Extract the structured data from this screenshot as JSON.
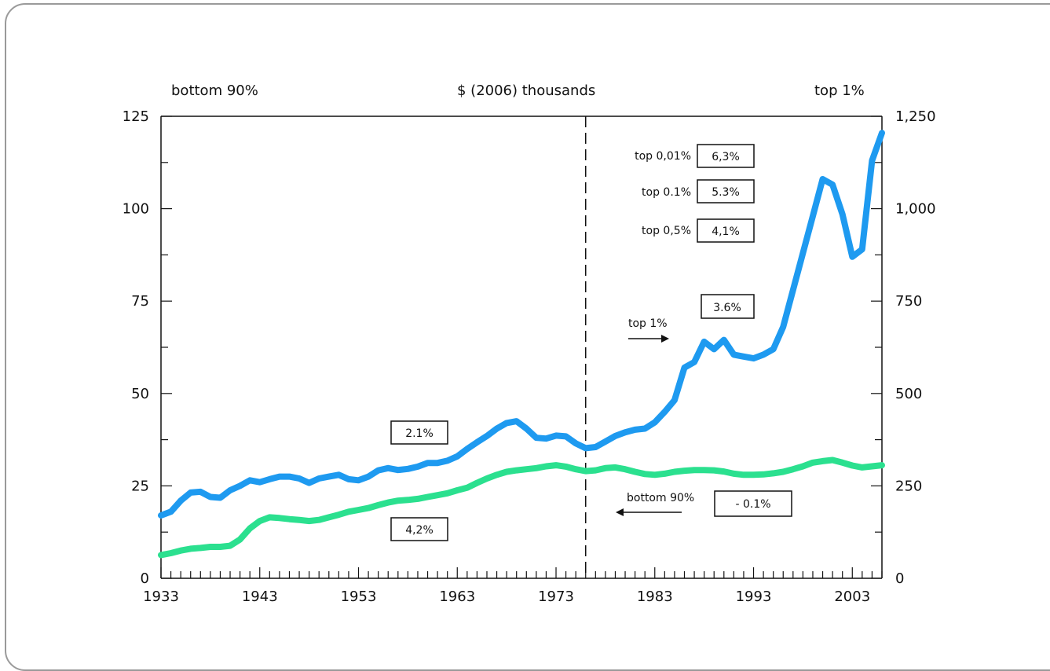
{
  "chart_data": {
    "type": "line",
    "header": {
      "left": "bottom 90%",
      "center": "$ (2006) thousands",
      "right": "top 1%"
    },
    "x": [
      1933,
      1934,
      1935,
      1936,
      1937,
      1938,
      1939,
      1940,
      1941,
      1942,
      1943,
      1944,
      1945,
      1946,
      1947,
      1948,
      1949,
      1950,
      1951,
      1952,
      1953,
      1954,
      1955,
      1956,
      1957,
      1958,
      1959,
      1960,
      1961,
      1962,
      1963,
      1964,
      1965,
      1966,
      1967,
      1968,
      1969,
      1970,
      1971,
      1972,
      1973,
      1974,
      1975,
      1976,
      1977,
      1978,
      1979,
      1980,
      1981,
      1982,
      1983,
      1984,
      1985,
      1986,
      1987,
      1988,
      1989,
      1990,
      1991,
      1992,
      1993,
      1994,
      1995,
      1996,
      1997,
      1998,
      1999,
      2000,
      2001,
      2002,
      2003,
      2004,
      2005,
      2006
    ],
    "xlim": [
      1933,
      2006
    ],
    "x_ticks": [
      "1933",
      "1943",
      "1953",
      "1963",
      "1973",
      "1983",
      "1993",
      "2003"
    ],
    "y_left": {
      "label": "bottom 90%",
      "lim": [
        0,
        125
      ],
      "ticks": [
        "0",
        "25",
        "50",
        "75",
        "100",
        "125"
      ]
    },
    "y_right": {
      "label": "top 1%",
      "lim": [
        0,
        1250
      ],
      "ticks": [
        "0",
        "250",
        "500",
        "750",
        "1,000",
        "1,250"
      ]
    },
    "series": [
      {
        "name": "top 1%",
        "axis": "right",
        "color": "#1e9af0",
        "values": [
          170,
          180,
          210,
          232,
          234,
          220,
          218,
          238,
          250,
          265,
          260,
          268,
          275,
          275,
          270,
          258,
          270,
          275,
          280,
          268,
          265,
          275,
          292,
          298,
          293,
          296,
          302,
          312,
          312,
          318,
          330,
          350,
          368,
          385,
          405,
          420,
          425,
          405,
          380,
          378,
          386,
          384,
          365,
          352,
          355,
          370,
          385,
          395,
          402,
          405,
          422,
          450,
          482,
          570,
          585,
          640,
          620,
          645,
          605,
          600,
          595,
          605,
          620,
          680,
          780,
          880,
          980,
          1080,
          1065,
          985,
          870,
          890,
          1130,
          1205
        ]
      },
      {
        "name": "bottom 90%",
        "axis": "left",
        "color": "#2be08f",
        "values": [
          6.3,
          6.8,
          7.5,
          8.0,
          8.2,
          8.5,
          8.5,
          8.8,
          10.5,
          13.5,
          15.5,
          16.5,
          16.3,
          16.0,
          15.8,
          15.5,
          15.8,
          16.5,
          17.2,
          18.0,
          18.5,
          19.0,
          19.8,
          20.5,
          21.0,
          21.2,
          21.5,
          22.0,
          22.5,
          23.0,
          23.8,
          24.5,
          25.8,
          27.0,
          28.0,
          28.8,
          29.2,
          29.5,
          29.8,
          30.3,
          30.6,
          30.2,
          29.5,
          29.0,
          29.2,
          29.8,
          30.0,
          29.5,
          28.8,
          28.2,
          28.0,
          28.3,
          28.8,
          29.1,
          29.3,
          29.3,
          29.2,
          28.9,
          28.3,
          28.0,
          28.0,
          28.1,
          28.4,
          28.8,
          29.5,
          30.3,
          31.3,
          31.7,
          32.0,
          31.3,
          30.5,
          30.0,
          30.3,
          30.6
        ]
      }
    ],
    "divider_year": 1976,
    "annotations": {
      "top_1_label": "top 1%",
      "bottom_90_label": "bottom 90%",
      "box_left_top": "2.1%",
      "box_left_bottom": "4,2%",
      "box_right_bottom": "- 0.1%",
      "box_right_top1": "3.6%",
      "group": [
        {
          "label": "top 0,01%",
          "value": "6,3%"
        },
        {
          "label": "top 0.1%",
          "value": "5.3%"
        },
        {
          "label": "top 0,5%",
          "value": "4,1%"
        }
      ]
    }
  }
}
